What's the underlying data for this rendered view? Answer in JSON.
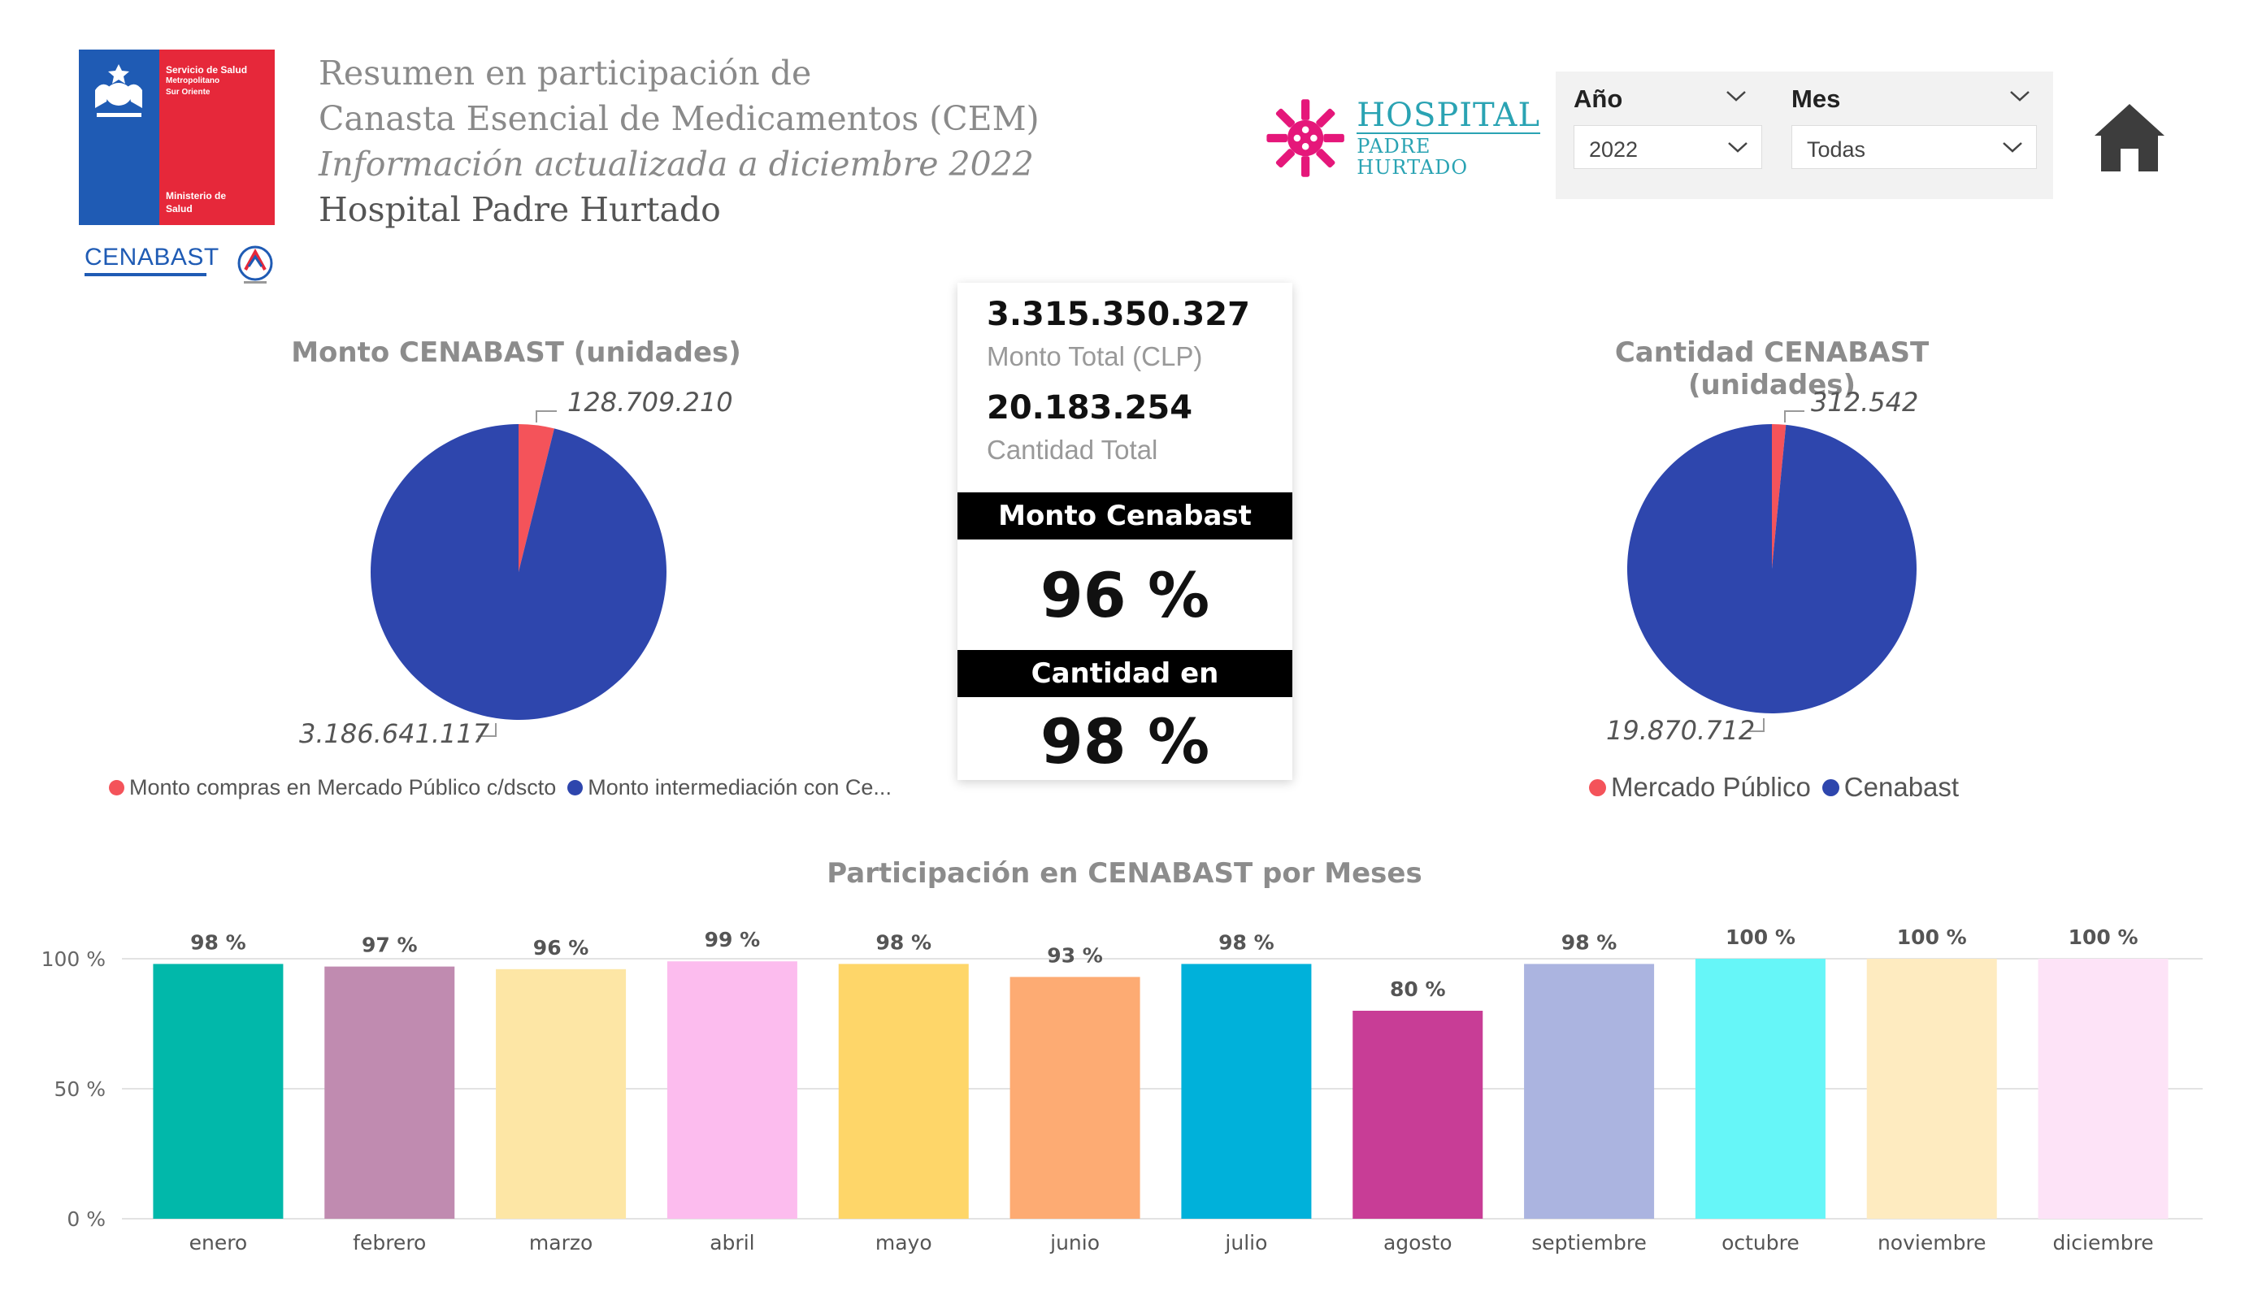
{
  "header": {
    "ministry_logo": {
      "top_text": [
        "Servicio de Salud",
        "Metropolitano",
        "Sur Oriente"
      ],
      "bottom_text": [
        "Ministerio de",
        "Salud"
      ]
    },
    "cenabast_logo_text": "CENABAST",
    "title_line1": "Resumen en participación de",
    "title_line2": "Canasta Esencial de Medicamentos (CEM)",
    "title_line3": "Información actualizada a diciembre 2022",
    "title_line4": "Hospital Padre Hurtado",
    "hospital_logo": {
      "line1": "HOSPITAL",
      "line2": "PADRE HURTADO",
      "color": "#e5177a"
    }
  },
  "filters": {
    "year_label": "Año",
    "year_value": "2022",
    "month_label": "Mes",
    "month_value": "Todas"
  },
  "home_icon": "home-icon",
  "kpi": {
    "monto_total_value": "3.315.350.327",
    "monto_total_label": "Monto Total (CLP)",
    "cantidad_total_value": "20.183.254",
    "cantidad_total_label": "Cantidad Total",
    "monto_header": "Monto Cenabast",
    "monto_pct": "96 %",
    "cantidad_header": "Cantidad en Cenabast",
    "cantidad_pct": "98 %"
  },
  "legend_monto": [
    {
      "label": "Monto compras en Mercado Público c/dscto",
      "color": "#f4535a"
    },
    {
      "label": "Monto intermediación con Ce...",
      "color": "#2e46ad"
    }
  ],
  "legend_cantidad": [
    {
      "label": "Mercado Público",
      "color": "#f4535a"
    },
    {
      "label": "Cenabast",
      "color": "#2e46ad"
    }
  ],
  "chart_data": [
    {
      "type": "pie",
      "title": "Monto CENABAST (unidades)",
      "slices": [
        {
          "label": "Monto compras en Mercado Público c/dscto",
          "value": 128709210,
          "display": "128.709.210",
          "color": "#f4535a"
        },
        {
          "label": "Monto intermediación con Ce...",
          "value": 3186641117,
          "display": "3.186.641.117",
          "color": "#2e46ad"
        }
      ]
    },
    {
      "type": "pie",
      "title": "Cantidad CENABAST (unidades)",
      "slices": [
        {
          "label": "Mercado Público",
          "value": 312542,
          "display": "312.542",
          "color": "#f4535a"
        },
        {
          "label": "Cenabast",
          "value": 19870712,
          "display": "19.870.712",
          "color": "#2e46ad"
        }
      ]
    },
    {
      "type": "bar",
      "title": "Participación en CENABAST por Meses",
      "categories": [
        "enero",
        "febrero",
        "marzo",
        "abril",
        "mayo",
        "junio",
        "julio",
        "agosto",
        "septiembre",
        "octubre",
        "noviembre",
        "diciembre"
      ],
      "values": [
        98,
        97,
        96,
        99,
        98,
        93,
        98,
        80,
        98,
        100,
        100,
        100
      ],
      "value_labels": [
        "98 %",
        "97 %",
        "96 %",
        "99 %",
        "98 %",
        "93 %",
        "98 %",
        "80 %",
        "98 %",
        "100 %",
        "100 %",
        "100 %"
      ],
      "colors": [
        "#01b8aa",
        "#c08bb0",
        "#fde6a5",
        "#fcbcee",
        "#fed669",
        "#fdab73",
        "#00b1da",
        "#c83d96",
        "#abb4e0",
        "#66f6f8",
        "#feebc0",
        "#fde3f7"
      ],
      "yticks": [
        "0 %",
        "50 %",
        "100 %"
      ],
      "ylim": [
        0,
        100
      ],
      "grid": true
    }
  ]
}
